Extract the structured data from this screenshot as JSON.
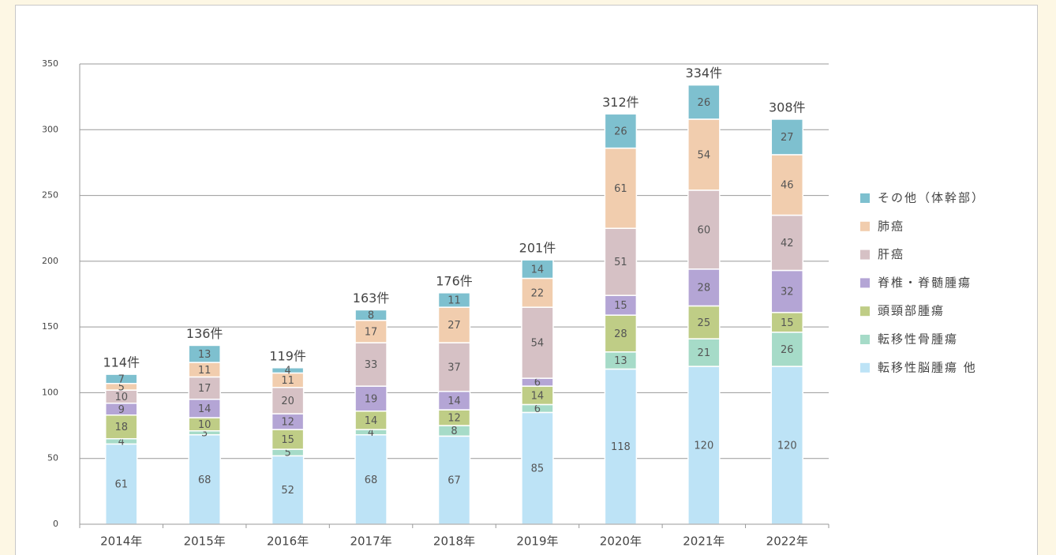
{
  "chart_data": {
    "type": "stacked_bar",
    "categories": [
      "2014年",
      "2015年",
      "2016年",
      "2017年",
      "2018年",
      "2019年",
      "2020年",
      "2021年",
      "2022年"
    ],
    "series": [
      {
        "name": "転移性脳腫瘍 他",
        "color": "#bde3f6",
        "values": [
          61,
          68,
          52,
          68,
          67,
          85,
          118,
          120,
          120
        ]
      },
      {
        "name": "転移性骨腫瘍",
        "color": "#a6dbc8",
        "values": [
          4,
          3,
          5,
          4,
          8,
          6,
          13,
          21,
          26
        ]
      },
      {
        "name": "頭頸部腫瘍",
        "color": "#bfcd86",
        "values": [
          18,
          10,
          15,
          14,
          12,
          14,
          28,
          25,
          15
        ]
      },
      {
        "name": "脊椎・脊髄腫瘍",
        "color": "#b4a5d5",
        "values": [
          9,
          14,
          12,
          19,
          14,
          6,
          15,
          28,
          32
        ]
      },
      {
        "name": "肝癌",
        "color": "#d6c1c5",
        "values": [
          10,
          17,
          20,
          33,
          37,
          54,
          51,
          60,
          42
        ]
      },
      {
        "name": "肺癌",
        "color": "#f1cdae",
        "values": [
          5,
          11,
          11,
          17,
          27,
          22,
          61,
          54,
          46
        ]
      },
      {
        "name": "その他（体幹部）",
        "color": "#7ec0cf",
        "values": [
          7,
          13,
          4,
          8,
          11,
          14,
          26,
          26,
          27
        ]
      }
    ],
    "totals": {
      "values": [
        114,
        136,
        119,
        163,
        176,
        201,
        312,
        334,
        308
      ],
      "value_labels": [
        "114件",
        "136件",
        "119件",
        "163件",
        "176件",
        "201件",
        "312件",
        "334件",
        "308件"
      ]
    },
    "ylim": [
      0,
      350
    ],
    "yticks": [
      0,
      50,
      100,
      150,
      200,
      250,
      300,
      350
    ],
    "grid": true
  }
}
